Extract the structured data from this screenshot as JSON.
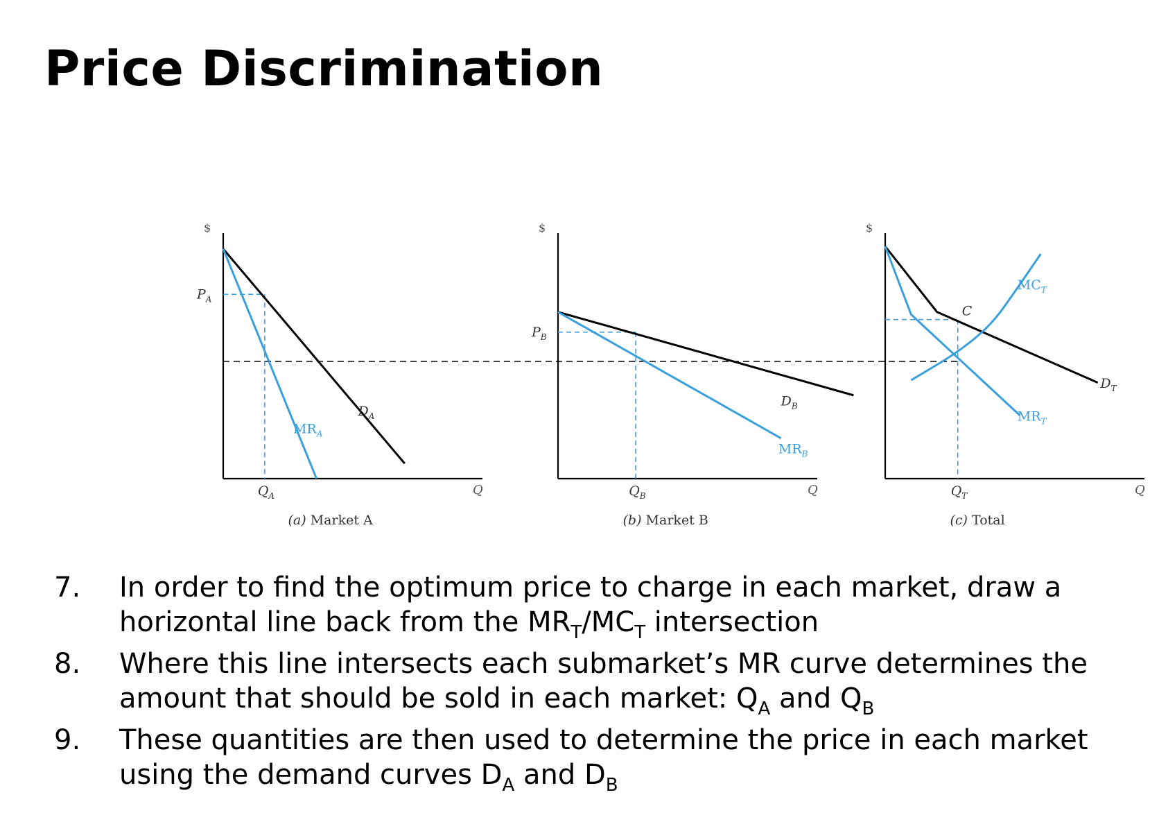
{
  "title": "Price Discrimination",
  "colors": {
    "mr": "#3aa0dc",
    "demand": "#000000",
    "guide": "#3aa0dc",
    "dashed": "#000000"
  },
  "chart_data": [
    {
      "type": "line",
      "caption_letter": "(a)",
      "caption_text": "Market A",
      "ylabel": "$",
      "xlabel": "Q",
      "xlim": [
        0,
        10
      ],
      "ylim": [
        0,
        10
      ],
      "price_label": "PA",
      "quantity_label": "QA",
      "series": [
        {
          "name": "DA",
          "label": "DA",
          "color": "#000000",
          "points": [
            [
              0,
              9.1
            ],
            [
              7.0,
              0.6
            ]
          ]
        },
        {
          "name": "MRA",
          "label": "MRA",
          "color": "#3aa0dc",
          "points": [
            [
              0,
              9.1
            ],
            [
              3.6,
              0.0
            ]
          ]
        }
      ],
      "guides": {
        "Q": 1.6,
        "P": 7.3,
        "MR_level": 5.0
      }
    },
    {
      "type": "line",
      "caption_letter": "(b)",
      "caption_text": "Market B",
      "ylabel": "$",
      "xlabel": "Q",
      "xlim": [
        0,
        10
      ],
      "ylim": [
        0,
        10
      ],
      "price_label": "PB",
      "quantity_label": "QB",
      "series": [
        {
          "name": "DB",
          "label": "DB",
          "color": "#000000",
          "points": [
            [
              0,
              6.6
            ],
            [
              11.4,
              3.3
            ]
          ]
        },
        {
          "name": "MRB",
          "label": "MRB",
          "color": "#3aa0dc",
          "points": [
            [
              0,
              6.6
            ],
            [
              8.6,
              1.6
            ]
          ]
        }
      ],
      "guides": {
        "Q": 3.0,
        "P": 5.8,
        "MR_level": 5.0
      }
    },
    {
      "type": "line",
      "caption_letter": "(c)",
      "caption_text": "Total",
      "ylabel": "$",
      "xlabel": "Q",
      "xlim": [
        0,
        10
      ],
      "ylim": [
        0,
        10
      ],
      "point_label": "C",
      "quantity_label": "QT",
      "series": [
        {
          "name": "DT",
          "label": "DT",
          "color": "#000000",
          "points": [
            [
              0,
              9.2
            ],
            [
              2.0,
              6.6
            ],
            [
              8.2,
              3.8
            ]
          ]
        },
        {
          "name": "MRT",
          "label": "MRT",
          "color": "#3aa0dc",
          "points": [
            [
              0,
              9.2
            ],
            [
              1.0,
              6.5
            ],
            [
              5.2,
              2.5
            ]
          ]
        },
        {
          "name": "MCT",
          "label": "MCT",
          "color": "#3aa0dc",
          "points": [
            [
              1.0,
              3.9
            ],
            [
              2.8,
              5.0
            ],
            [
              4.1,
              6.1
            ],
            [
              5.0,
              7.4
            ],
            [
              6.0,
              8.9
            ]
          ]
        }
      ],
      "guides": {
        "Q": 2.8,
        "P": 6.3,
        "MR_level": 5.0
      }
    }
  ],
  "steps": [
    {
      "num": "7.",
      "text_a": "In order to find the optimum price to charge in each market, draw a horizontal line back from the MR",
      "sub_a": "T",
      "text_b": "/MC",
      "sub_b": "T",
      "text_c": " intersection"
    },
    {
      "num": "8.",
      "text_a": "Where this line intersects each submarket’s MR curve determines the amount that should be sold in each market: Q",
      "sub_a": "A",
      "text_b": " and Q",
      "sub_b": "B",
      "text_c": ""
    },
    {
      "num": "9.",
      "text_a": "These quantities are then used to determine the price in each market using the demand curves D",
      "sub_a": "A",
      "text_b": " and D",
      "sub_b": "B",
      "text_c": ""
    }
  ]
}
